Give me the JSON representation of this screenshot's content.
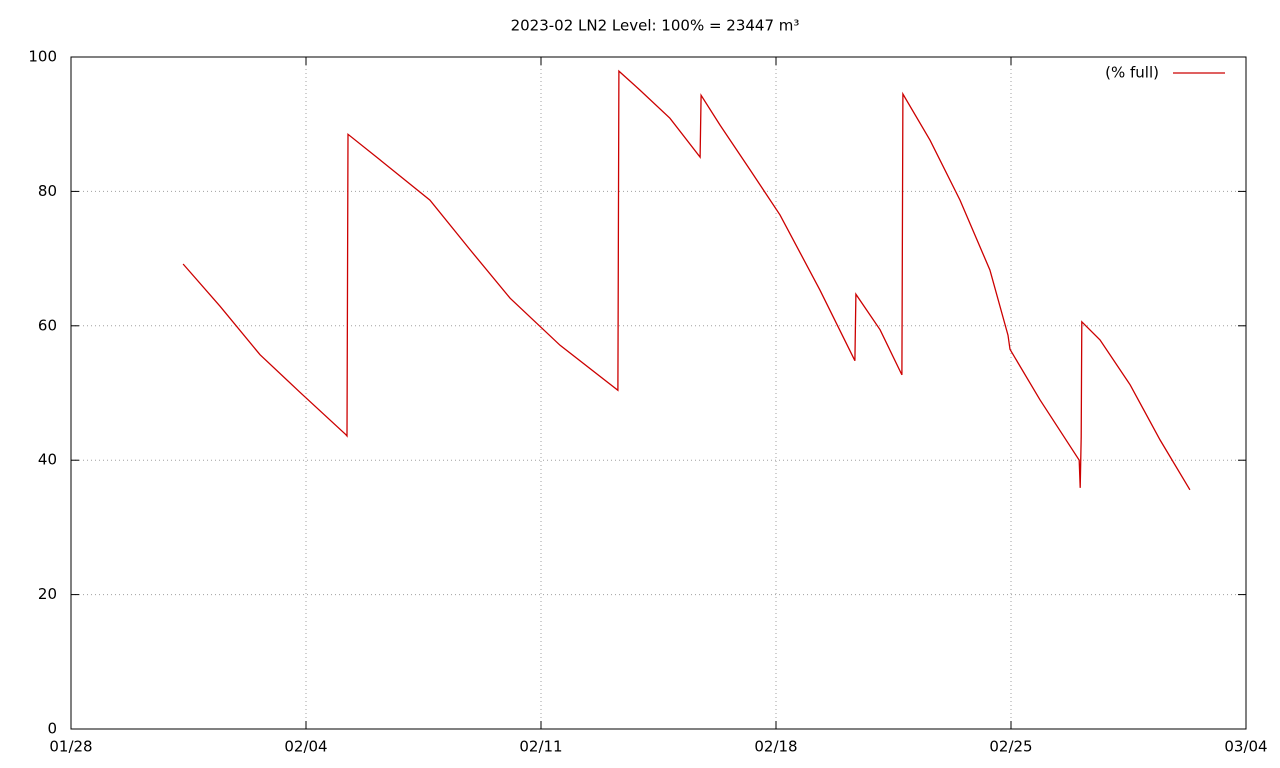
{
  "chart_data": {
    "type": "line",
    "title": "2023-02 LN2 Level: 100% = 23447 m³",
    "xlim": [
      0,
      35
    ],
    "xticks": [
      {
        "value": 0,
        "label": "01/28"
      },
      {
        "value": 7,
        "label": "02/04"
      },
      {
        "value": 14,
        "label": "02/11"
      },
      {
        "value": 21,
        "label": "02/18"
      },
      {
        "value": 28,
        "label": "02/25"
      },
      {
        "value": 35,
        "label": "03/04"
      }
    ],
    "ylim": [
      0,
      100
    ],
    "yticks": [
      0,
      20,
      40,
      60,
      80,
      100
    ],
    "grid": true,
    "legend": "top-right",
    "x": [
      3.34,
      4.44,
      5.63,
      6.82,
      8.19,
      8.22,
      8.25,
      9.2,
      10.69,
      11.89,
      13.08,
      14.57,
      16.29,
      16.32,
      16.94,
      17.84,
      18.74,
      18.77,
      19.33,
      20.23,
      21.12,
      22.31,
      23.35,
      23.38,
      24.1,
      24.75,
      24.78,
      25.59,
      26.48,
      27.37,
      27.91,
      27.97,
      28.86,
      30.03,
      30.06,
      30.09,
      30.11,
      30.65,
      31.55,
      32.44,
      33.33
    ],
    "series": [
      {
        "name": "(% full)",
        "color": "#cc0000",
        "values": [
          69.2,
          62.9,
          55.7,
          50.1,
          43.8,
          43.6,
          88.5,
          84.7,
          78.7,
          71.3,
          64.1,
          57.1,
          50.4,
          97.9,
          95.1,
          90.9,
          85.1,
          94.3,
          89.9,
          83.2,
          76.5,
          65.3,
          54.8,
          64.7,
          59.4,
          52.7,
          94.5,
          87.6,
          78.7,
          68.3,
          58.6,
          56.5,
          49.0,
          40.0,
          35.9,
          43.5,
          60.6,
          57.9,
          51.2,
          43.0,
          35.6
        ]
      }
    ]
  }
}
